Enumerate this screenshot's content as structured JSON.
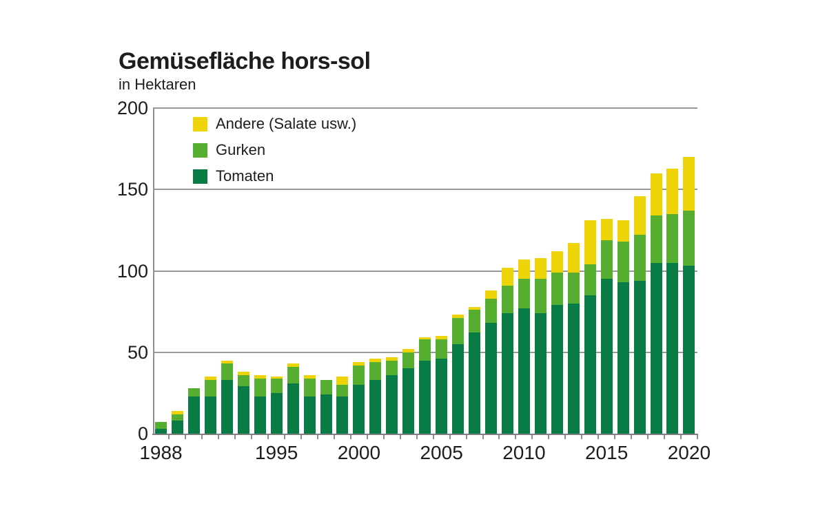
{
  "chart_data": {
    "type": "bar",
    "stacked": true,
    "title": "Gemüsefläche hors-sol",
    "subtitle": "in Hektaren",
    "xlabel": "",
    "ylabel": "Hektaren",
    "ylim": [
      0,
      200
    ],
    "yticks": [
      0,
      50,
      100,
      150,
      200
    ],
    "grid": true,
    "legend_position": "top-left-inside",
    "categories": [
      1988,
      1989,
      1990,
      1991,
      1992,
      1993,
      1994,
      1995,
      1996,
      1997,
      1998,
      1999,
      2000,
      2001,
      2002,
      2003,
      2004,
      2005,
      2006,
      2007,
      2008,
      2009,
      2010,
      2011,
      2012,
      2013,
      2014,
      2015,
      2016,
      2017,
      2018,
      2019,
      2020
    ],
    "x_tick_labels": [
      "1988",
      "1995",
      "2000",
      "2005",
      "2010",
      "2015",
      "2020"
    ],
    "series": [
      {
        "name": "Tomaten",
        "color": "#087c44",
        "values": [
          3,
          8,
          23,
          23,
          33,
          29,
          23,
          25,
          31,
          23,
          24,
          23,
          30,
          33,
          36,
          40,
          45,
          46,
          55,
          62,
          68,
          74,
          77,
          74,
          79,
          80,
          85,
          95,
          93,
          94,
          105,
          105,
          103
        ]
      },
      {
        "name": "Gurken",
        "color": "#55ae2f",
        "values": [
          4,
          4,
          5,
          10,
          10,
          7,
          11,
          9,
          10,
          11,
          9,
          7,
          12,
          11,
          9,
          10,
          13,
          12,
          16,
          14,
          15,
          17,
          18,
          21,
          20,
          19,
          19,
          24,
          25,
          28,
          29,
          30,
          34
        ]
      },
      {
        "name": "Andere (Salate usw.)",
        "color": "#eed307",
        "values": [
          0,
          2,
          0,
          2,
          2,
          2,
          2,
          1,
          2,
          2,
          0,
          5,
          2,
          2,
          2,
          2,
          1,
          2,
          2,
          2,
          5,
          11,
          12,
          13,
          13,
          18,
          27,
          13,
          13,
          24,
          26,
          28,
          33
        ]
      }
    ],
    "legend": [
      {
        "label": "Andere (Salate usw.)",
        "swatch_color": "#eed307"
      },
      {
        "label": "Gurken",
        "swatch_color": "#55ae2f"
      },
      {
        "label": "Tomaten",
        "swatch_color": "#087c44"
      }
    ]
  }
}
